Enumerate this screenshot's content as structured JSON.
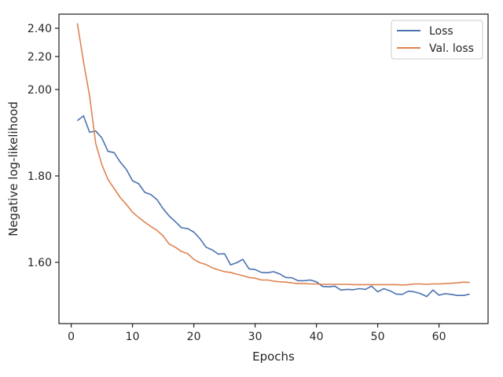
{
  "chart_data": {
    "type": "line",
    "xlabel": "Epochs",
    "ylabel": "Negative log-likelihood",
    "xlim": [
      -2,
      68
    ],
    "ylim": [
      1.43,
      2.475
    ],
    "x_ticks": [
      0,
      10,
      20,
      30,
      40,
      50,
      60
    ],
    "y_ticks": [
      {
        "value": 1.6,
        "label": "1.60"
      },
      {
        "value": 1.8,
        "label": "1.80"
      },
      {
        "value": 2.0,
        "label": "2.00"
      },
      {
        "value": 2.2,
        "label": "2.20"
      },
      {
        "value": 2.4,
        "label": "2.40"
      }
    ],
    "y_scale": "nonlinear (tick spacing compresses toward top)",
    "grid": false,
    "legend_position": "top-right",
    "x": [
      1,
      2,
      3,
      4,
      5,
      6,
      7,
      8,
      9,
      10,
      11,
      12,
      13,
      14,
      15,
      16,
      17,
      18,
      19,
      20,
      21,
      22,
      23,
      24,
      25,
      26,
      27,
      28,
      29,
      30,
      31,
      32,
      33,
      34,
      35,
      36,
      37,
      38,
      39,
      40,
      41,
      42,
      43,
      44,
      45,
      46,
      47,
      48,
      49,
      50,
      51,
      52,
      53,
      54,
      55,
      56,
      57,
      58,
      59,
      60,
      61,
      62,
      63,
      64,
      65
    ],
    "series": [
      {
        "name": "Loss",
        "color": "#4c72b0",
        "values": [
          1.928,
          1.939,
          1.901,
          1.904,
          1.888,
          1.857,
          1.854,
          1.832,
          1.815,
          1.789,
          1.782,
          1.762,
          1.757,
          1.745,
          1.724,
          1.707,
          1.694,
          1.68,
          1.678,
          1.67,
          1.655,
          1.635,
          1.629,
          1.619,
          1.62,
          1.593,
          1.599,
          1.607,
          1.582,
          1.58,
          1.572,
          1.571,
          1.574,
          1.568,
          1.558,
          1.557,
          1.549,
          1.549,
          1.551,
          1.546,
          1.533,
          1.532,
          1.534,
          1.523,
          1.525,
          1.524,
          1.527,
          1.525,
          1.534,
          1.518,
          1.527,
          1.521,
          1.512,
          1.511,
          1.52,
          1.518,
          1.513,
          1.505,
          1.523,
          1.509,
          1.513,
          1.511,
          1.508,
          1.508,
          1.512
        ]
      },
      {
        "name": "Val. loss",
        "color": "#dd8452",
        "values": [
          2.44,
          2.17,
          1.985,
          1.875,
          1.826,
          1.792,
          1.771,
          1.75,
          1.734,
          1.716,
          1.704,
          1.693,
          1.683,
          1.674,
          1.661,
          1.642,
          1.635,
          1.625,
          1.62,
          1.607,
          1.599,
          1.594,
          1.585,
          1.579,
          1.574,
          1.572,
          1.567,
          1.563,
          1.558,
          1.556,
          1.551,
          1.551,
          1.548,
          1.546,
          1.545,
          1.543,
          1.541,
          1.541,
          1.54,
          1.54,
          1.539,
          1.539,
          1.539,
          1.539,
          1.539,
          1.538,
          1.538,
          1.538,
          1.538,
          1.538,
          1.538,
          1.538,
          1.538,
          1.537,
          1.538,
          1.54,
          1.54,
          1.539,
          1.54,
          1.54,
          1.541,
          1.542,
          1.543,
          1.545,
          1.544
        ]
      }
    ]
  }
}
